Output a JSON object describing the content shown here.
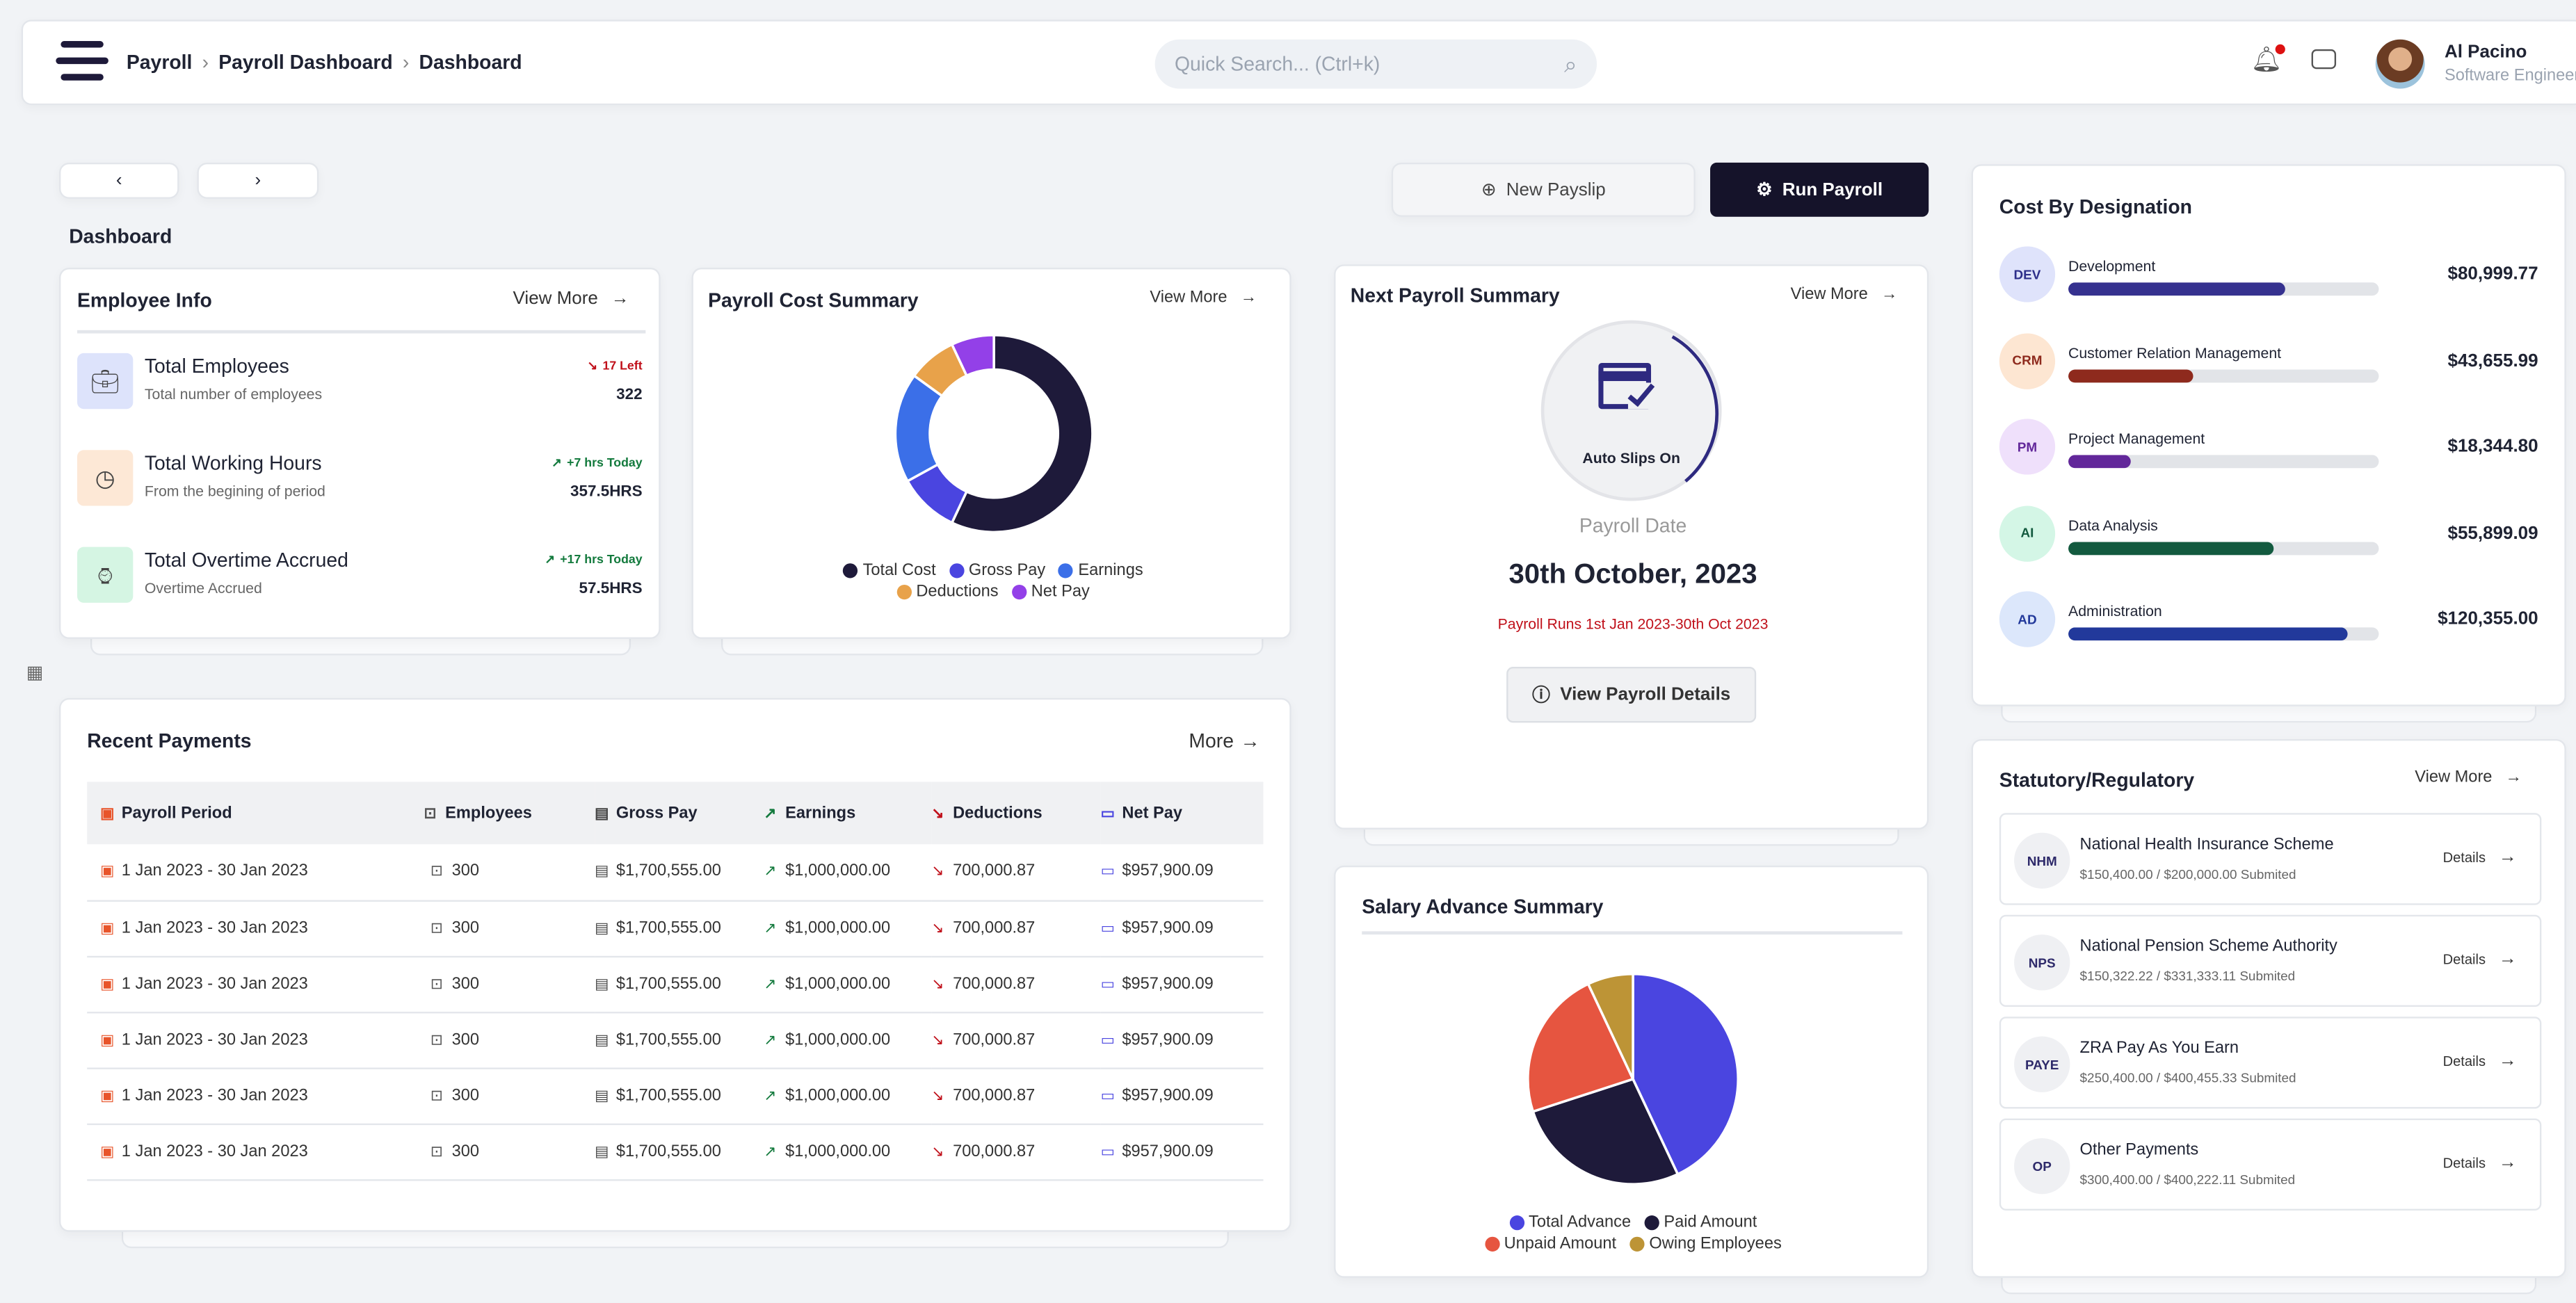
{
  "header": {
    "breadcrumb": [
      "Payroll",
      "Payroll Dashboard",
      "Dashboard"
    ],
    "search_placeholder": "Quick Search... (Ctrl+k)",
    "user_name": "Al Pacino",
    "user_role": "Software Engineer"
  },
  "nav": {
    "prev": "‹",
    "next": "›"
  },
  "page_title": "Dashboard",
  "actions": {
    "new_payslip": "New Payslip",
    "run_payroll": "Run Payroll"
  },
  "employee_info": {
    "title": "Employee Info",
    "view_more": "View More",
    "items": [
      {
        "title": "Total Employees",
        "subtitle": "Total number of employees",
        "trend": "17 Left",
        "trend_dir": "down",
        "value": "322",
        "icon": "briefcase-icon",
        "color": "#dde3fb"
      },
      {
        "title": "Total Working Hours",
        "subtitle": "From the begining of period",
        "trend": "+7 hrs Today",
        "trend_dir": "up",
        "value": "357.5HRS",
        "icon": "clock-icon",
        "color": "#fde8d6"
      },
      {
        "title": "Total Overtime Accrued",
        "subtitle": "Overtime Accrued",
        "trend": "+17 hrs Today",
        "trend_dir": "up",
        "value": "57.5HRS",
        "icon": "overtime-icon",
        "color": "#d5f5e3"
      }
    ]
  },
  "payroll_cost": {
    "title": "Payroll Cost Summary",
    "view_more": "View More"
  },
  "chart_data": [
    {
      "type": "pie",
      "variant": "donut",
      "legend": "bottom",
      "series": [
        {
          "name": "Total Cost",
          "value": 57,
          "color": "#1e1a3a"
        },
        {
          "name": "Gross Pay",
          "value": 10,
          "color": "#4a45e0"
        },
        {
          "name": "Earnings",
          "value": 18,
          "color": "#3b6fe8"
        },
        {
          "name": "Deductions",
          "value": 8,
          "color": "#e8a24a"
        },
        {
          "name": "Net Pay",
          "value": 7,
          "color": "#9340e8"
        }
      ]
    },
    {
      "type": "pie",
      "legend": "bottom",
      "series": [
        {
          "name": "Total Advance",
          "value": 43,
          "color": "#4a45e0"
        },
        {
          "name": "Paid Amount",
          "value": 27,
          "color": "#1e1a3a"
        },
        {
          "name": "Unpaid Amount",
          "value": 23,
          "color": "#e65540"
        },
        {
          "name": "Owing Employees",
          "value": 7,
          "color": "#bd9436"
        }
      ]
    }
  ],
  "next_payroll": {
    "title": "Next Payroll Summary",
    "view_more": "View More",
    "auto": "Auto Slips On",
    "date_label": "Payroll Date",
    "date": "30th October, 2023",
    "runs": "Payroll Runs 1st Jan 2023-30th Oct 2023",
    "details_button": "View Payroll Details"
  },
  "salary_advance": {
    "title": "Salary Advance Summary"
  },
  "recent": {
    "title": "Recent Payments",
    "more": "More",
    "columns": [
      "Payroll Period",
      "Employees",
      "Gross Pay",
      "Earnings",
      "Deductions",
      "Net Pay"
    ],
    "rows": [
      [
        "1 Jan 2023 - 30 Jan 2023",
        "300",
        "$1,700,555.00",
        "$1,000,000.00",
        "700,000.87",
        "$957,900.09"
      ],
      [
        "1 Jan 2023 - 30 Jan 2023",
        "300",
        "$1,700,555.00",
        "$1,000,000.00",
        "700,000.87",
        "$957,900.09"
      ],
      [
        "1 Jan 2023 - 30 Jan 2023",
        "300",
        "$1,700,555.00",
        "$1,000,000.00",
        "700,000.87",
        "$957,900.09"
      ],
      [
        "1 Jan 2023 - 30 Jan 2023",
        "300",
        "$1,700,555.00",
        "$1,000,000.00",
        "700,000.87",
        "$957,900.09"
      ],
      [
        "1 Jan 2023 - 30 Jan 2023",
        "300",
        "$1,700,555.00",
        "$1,000,000.00",
        "700,000.87",
        "$957,900.09"
      ],
      [
        "1 Jan 2023 - 30 Jan 2023",
        "300",
        "$1,700,555.00",
        "$1,000,000.00",
        "700,000.87",
        "$957,900.09"
      ]
    ]
  },
  "designation": {
    "title": "Cost By Designation",
    "items": [
      {
        "code": "DEV",
        "name": "Development",
        "amount": "$80,999.77",
        "pct": 70,
        "color": "#35318f",
        "bg": "#dfe3fb",
        "fg": "#2e2f8a"
      },
      {
        "code": "CRM",
        "name": "Customer Relation Management",
        "amount": "$43,655.99",
        "pct": 40,
        "color": "#8e2a1d",
        "bg": "#fde6d2",
        "fg": "#8e2a1d"
      },
      {
        "code": "PM",
        "name": "Project Management",
        "amount": "$18,344.80",
        "pct": 20,
        "color": "#62279a",
        "bg": "#efe0fb",
        "fg": "#62279a"
      },
      {
        "code": "AI",
        "name": "Data Analysis",
        "amount": "$55,899.09",
        "pct": 66,
        "color": "#135a3f",
        "bg": "#d4f6e6",
        "fg": "#135a3f"
      },
      {
        "code": "AD",
        "name": "Administration",
        "amount": "$120,355.00",
        "pct": 90,
        "color": "#22399b",
        "bg": "#dce7fb",
        "fg": "#22399b"
      }
    ]
  },
  "statutory": {
    "title": "Statutory/Regulatory",
    "view_more": "View More",
    "items": [
      {
        "code": "NHM",
        "name": "National Health Insurance Scheme",
        "detail": "$150,400.00 / $200,000.00 Submited",
        "link": "Details"
      },
      {
        "code": "NPS",
        "name": "National Pension Scheme Authority",
        "detail": "$150,322.22 / $331,333.11 Submited",
        "link": "Details"
      },
      {
        "code": "PAYE",
        "name": "ZRA Pay As You Earn",
        "detail": "$250,400.00 / $400,455.33 Submited",
        "link": "Details"
      },
      {
        "code": "OP",
        "name": "Other Payments",
        "detail": "$300,400.00 / $400,222.11 Submited",
        "link": "Details"
      }
    ]
  }
}
